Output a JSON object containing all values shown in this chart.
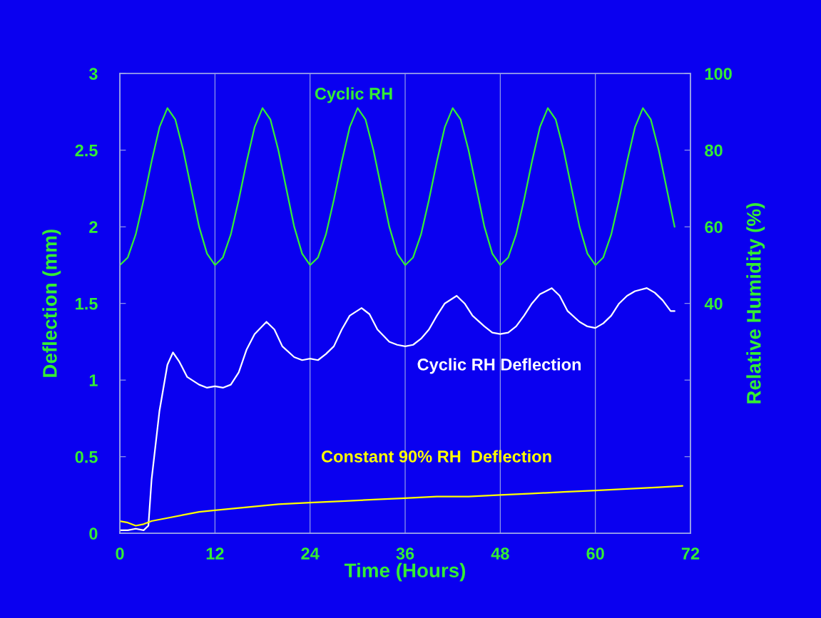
{
  "chart_data": {
    "type": "line",
    "xlabel": "Time (Hours)",
    "ylabel": "Deflection (mm)",
    "y2label": "Relative Humidity (%)",
    "xlim": [
      0,
      72
    ],
    "xticks": [
      0,
      12,
      24,
      36,
      48,
      60,
      72
    ],
    "ylim": [
      0,
      3
    ],
    "yticks": [
      0,
      0.5,
      1,
      1.5,
      2,
      2.5,
      3
    ],
    "y2lim": [
      -20,
      100
    ],
    "y2ticks": [
      {
        "value": 0,
        "label": null
      },
      {
        "value": 20,
        "label": null
      },
      40,
      60,
      80,
      100
    ],
    "grid": "x",
    "legend": false,
    "line_style": "solid",
    "marker": "none",
    "series": [
      {
        "name": "Cyclic RH",
        "color": "#33ee33",
        "axis": "y2",
        "x": [
          0,
          1,
          2,
          3,
          4,
          5,
          6,
          7,
          8,
          9,
          10,
          11,
          12,
          13,
          14,
          15,
          16,
          17,
          18,
          19,
          20,
          21,
          22,
          23,
          24,
          25,
          26,
          27,
          28,
          29,
          30,
          31,
          32,
          33,
          34,
          35,
          36,
          37,
          38,
          39,
          40,
          41,
          42,
          43,
          44,
          45,
          46,
          47,
          48,
          49,
          50,
          51,
          52,
          53,
          54,
          55,
          56,
          57,
          58,
          59,
          60,
          61,
          62,
          63,
          64,
          65,
          66,
          67,
          68,
          69,
          70
        ],
        "values": [
          50,
          52,
          58,
          67,
          77,
          86,
          91,
          88,
          80,
          70,
          60,
          53,
          50,
          52,
          58,
          67,
          77,
          86,
          91,
          88,
          80,
          70,
          60,
          53,
          50,
          52,
          58,
          67,
          77,
          86,
          91,
          88,
          80,
          70,
          60,
          53,
          50,
          52,
          58,
          67,
          77,
          86,
          91,
          88,
          80,
          70,
          60,
          53,
          50,
          52,
          58,
          67,
          77,
          86,
          91,
          88,
          80,
          70,
          60,
          53,
          50,
          52,
          58,
          67,
          77,
          86,
          91,
          88,
          80,
          70,
          60
        ]
      },
      {
        "name": "Cyclic RH Deflection",
        "color": "#ffffff",
        "x": [
          0,
          1,
          2,
          3,
          3.6,
          4,
          5,
          6,
          6.7,
          7.5,
          8.5,
          10,
          11,
          12,
          13,
          14,
          15,
          16,
          17,
          18.5,
          19.5,
          20.5,
          22,
          23,
          24,
          25,
          26,
          27,
          28,
          29,
          30.5,
          31.5,
          32.5,
          34,
          35,
          36,
          37,
          38,
          39,
          40,
          41,
          42.5,
          43.5,
          44.5,
          46,
          47,
          48,
          49,
          50,
          51,
          52,
          53,
          54.5,
          55.5,
          56.5,
          58,
          59,
          60,
          61,
          62,
          63,
          64,
          65,
          66.5,
          67.5,
          68.5,
          69.5,
          70
        ],
        "values": [
          0.02,
          0.02,
          0.03,
          0.02,
          0.05,
          0.35,
          0.8,
          1.1,
          1.18,
          1.12,
          1.02,
          0.97,
          0.95,
          0.96,
          0.95,
          0.97,
          1.05,
          1.2,
          1.3,
          1.38,
          1.33,
          1.22,
          1.15,
          1.13,
          1.14,
          1.13,
          1.17,
          1.22,
          1.33,
          1.42,
          1.47,
          1.43,
          1.33,
          1.25,
          1.23,
          1.22,
          1.23,
          1.27,
          1.33,
          1.42,
          1.5,
          1.55,
          1.5,
          1.42,
          1.35,
          1.31,
          1.3,
          1.31,
          1.35,
          1.42,
          1.5,
          1.56,
          1.6,
          1.55,
          1.45,
          1.38,
          1.35,
          1.34,
          1.37,
          1.42,
          1.5,
          1.55,
          1.58,
          1.6,
          1.57,
          1.52,
          1.45,
          1.45
        ]
      },
      {
        "name": "Constant 90% RH  Deflection",
        "color": "#ffff00",
        "x": [
          0,
          1,
          2,
          3,
          4,
          6,
          8,
          10,
          12,
          16,
          20,
          24,
          28,
          32,
          36,
          40,
          44,
          48,
          52,
          56,
          60,
          64,
          68,
          71
        ],
        "values": [
          0.08,
          0.07,
          0.05,
          0.06,
          0.08,
          0.1,
          0.12,
          0.14,
          0.15,
          0.17,
          0.19,
          0.2,
          0.21,
          0.22,
          0.23,
          0.24,
          0.24,
          0.25,
          0.26,
          0.27,
          0.28,
          0.29,
          0.3,
          0.31
        ]
      }
    ]
  }
}
